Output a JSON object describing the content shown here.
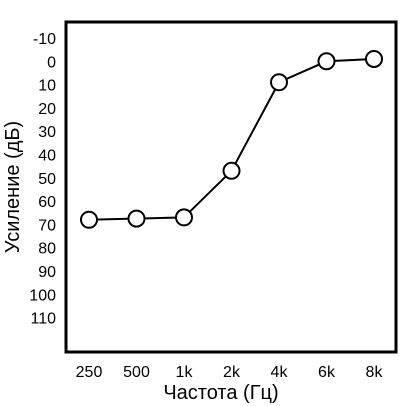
{
  "chart_data": {
    "type": "line",
    "title": "",
    "xlabel": "Частота (Гц)",
    "ylabel": "Усиление (дБ)",
    "categories": [
      "250",
      "500",
      "1k",
      "2k",
      "4k",
      "6k",
      "8k"
    ],
    "values": [
      68,
      67.5,
      67,
      47,
      9,
      0,
      -1
    ],
    "y_ticks": [
      "-10",
      "0",
      "10",
      "20",
      "30",
      "40",
      "50",
      "60",
      "70",
      "80",
      "90",
      "100",
      "110"
    ],
    "ylim": [
      -15,
      115
    ],
    "y_inverted": true,
    "grid": false,
    "legend": "none",
    "marker": "open-circle",
    "colors": {
      "line": "#000000",
      "marker_fill": "#ffffff",
      "frame": "#000000"
    }
  }
}
